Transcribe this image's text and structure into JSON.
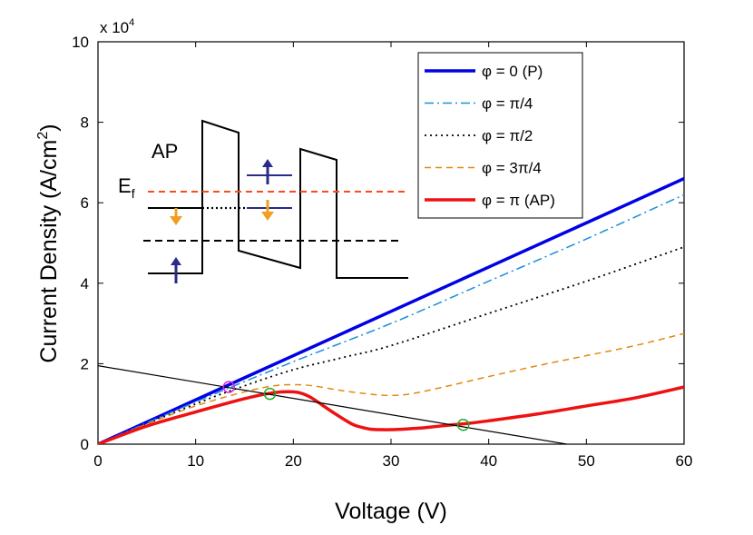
{
  "chart_data": {
    "type": "line",
    "title": "",
    "xlabel": "Voltage (V)",
    "ylabel_main": "Current Density (A/cm",
    "ylabel_sup": "2",
    "ylabel_end": ")",
    "y_multiplier_base": "x 10",
    "y_multiplier_exp": "4",
    "xlim": [
      0,
      60
    ],
    "ylim": [
      0,
      10
    ],
    "xticks": [
      0,
      10,
      20,
      30,
      40,
      50,
      60
    ],
    "yticks": [
      0,
      2,
      4,
      6,
      8,
      10
    ],
    "legend_position": "top-right",
    "series": [
      {
        "name": "φ = 0 (P)",
        "color": "#0000e6",
        "style": "solid",
        "width": 3.5,
        "x": [
          0,
          10,
          20,
          30,
          40,
          50,
          60
        ],
        "y": [
          0,
          1.1,
          2.2,
          3.3,
          4.4,
          5.5,
          6.6
        ]
      },
      {
        "name": "φ = π/4",
        "color": "#1a8fd6",
        "style": "dashdot",
        "width": 1.5,
        "x": [
          0,
          10,
          20,
          30,
          40,
          50,
          60
        ],
        "y": [
          0,
          1.05,
          2.05,
          3.0,
          4.05,
          5.1,
          6.2
        ]
      },
      {
        "name": "φ = π/2",
        "color": "#000000",
        "style": "dotted",
        "width": 1.8,
        "x": [
          0,
          10,
          15,
          20,
          25,
          30,
          40,
          50,
          60
        ],
        "y": [
          0,
          1.0,
          1.45,
          1.85,
          2.15,
          2.45,
          3.25,
          4.05,
          4.9
        ]
      },
      {
        "name": "φ = 3π/4",
        "color": "#e08a10",
        "style": "dashed",
        "width": 1.5,
        "x": [
          0,
          5,
          10,
          15,
          18,
          20,
          22,
          25,
          28,
          30,
          32,
          35,
          40,
          45,
          50,
          55,
          60
        ],
        "y": [
          0,
          0.5,
          0.95,
          1.3,
          1.45,
          1.48,
          1.45,
          1.33,
          1.24,
          1.21,
          1.25,
          1.4,
          1.68,
          1.95,
          2.2,
          2.45,
          2.75
        ]
      },
      {
        "name": "φ = π (AP)",
        "color": "#ee1111",
        "style": "solid",
        "width": 3.5,
        "x": [
          0,
          5,
          10,
          15,
          18,
          20,
          21,
          22,
          24,
          26,
          27,
          28,
          29,
          30,
          31,
          33,
          35,
          38,
          40,
          45,
          50,
          55,
          60
        ],
        "y": [
          0,
          0.45,
          0.8,
          1.13,
          1.28,
          1.3,
          1.25,
          1.13,
          0.8,
          0.5,
          0.42,
          0.37,
          0.36,
          0.36,
          0.37,
          0.4,
          0.45,
          0.52,
          0.58,
          0.75,
          0.95,
          1.15,
          1.42
        ]
      },
      {
        "name": "",
        "color": "#000000",
        "style": "solid",
        "width": 1.2,
        "x": [
          0,
          48
        ],
        "y": [
          1.95,
          0
        ]
      }
    ],
    "markers": [
      {
        "x": 13.4,
        "y": 1.42,
        "color": "#dd22dd"
      },
      {
        "x": 17.6,
        "y": 1.25,
        "color": "#22aa22"
      },
      {
        "x": 37.4,
        "y": 0.48,
        "color": "#22aa22"
      }
    ],
    "inset": {
      "label_ap": "AP",
      "label_ef_main": "E",
      "label_ef_sub": "f"
    }
  }
}
